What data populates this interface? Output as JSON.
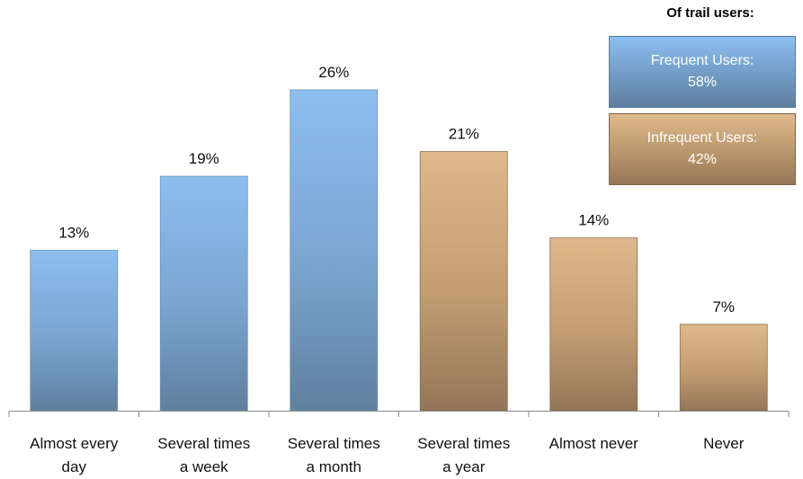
{
  "legend": {
    "title": "Of trail users:",
    "items": [
      {
        "label": "Frequent Users:",
        "value": "58%"
      },
      {
        "label": "Infrequent Users:",
        "value": "42%"
      }
    ]
  },
  "colors": {
    "frequent_top": "#8dbef0",
    "frequent_bottom": "#5f7f9d",
    "infrequent_top": "#deb98c",
    "infrequent_bottom": "#937558"
  },
  "chart_data": {
    "type": "bar",
    "categories": [
      [
        "Almost every",
        "day"
      ],
      [
        "Several times",
        "a week"
      ],
      [
        "Several times",
        "a month"
      ],
      [
        "Several times",
        "a year"
      ],
      [
        "Almost never"
      ],
      [
        "Never"
      ]
    ],
    "values": [
      13,
      19,
      26,
      21,
      14,
      7
    ],
    "data_labels": [
      "13%",
      "19%",
      "26%",
      "21%",
      "14%",
      "7%"
    ],
    "groups": [
      "frequent",
      "frequent",
      "frequent",
      "infrequent",
      "infrequent",
      "infrequent"
    ],
    "title": "",
    "xlabel": "",
    "ylabel": "",
    "ylim": [
      0,
      30
    ],
    "grid": false,
    "legend_position": "top-right"
  }
}
